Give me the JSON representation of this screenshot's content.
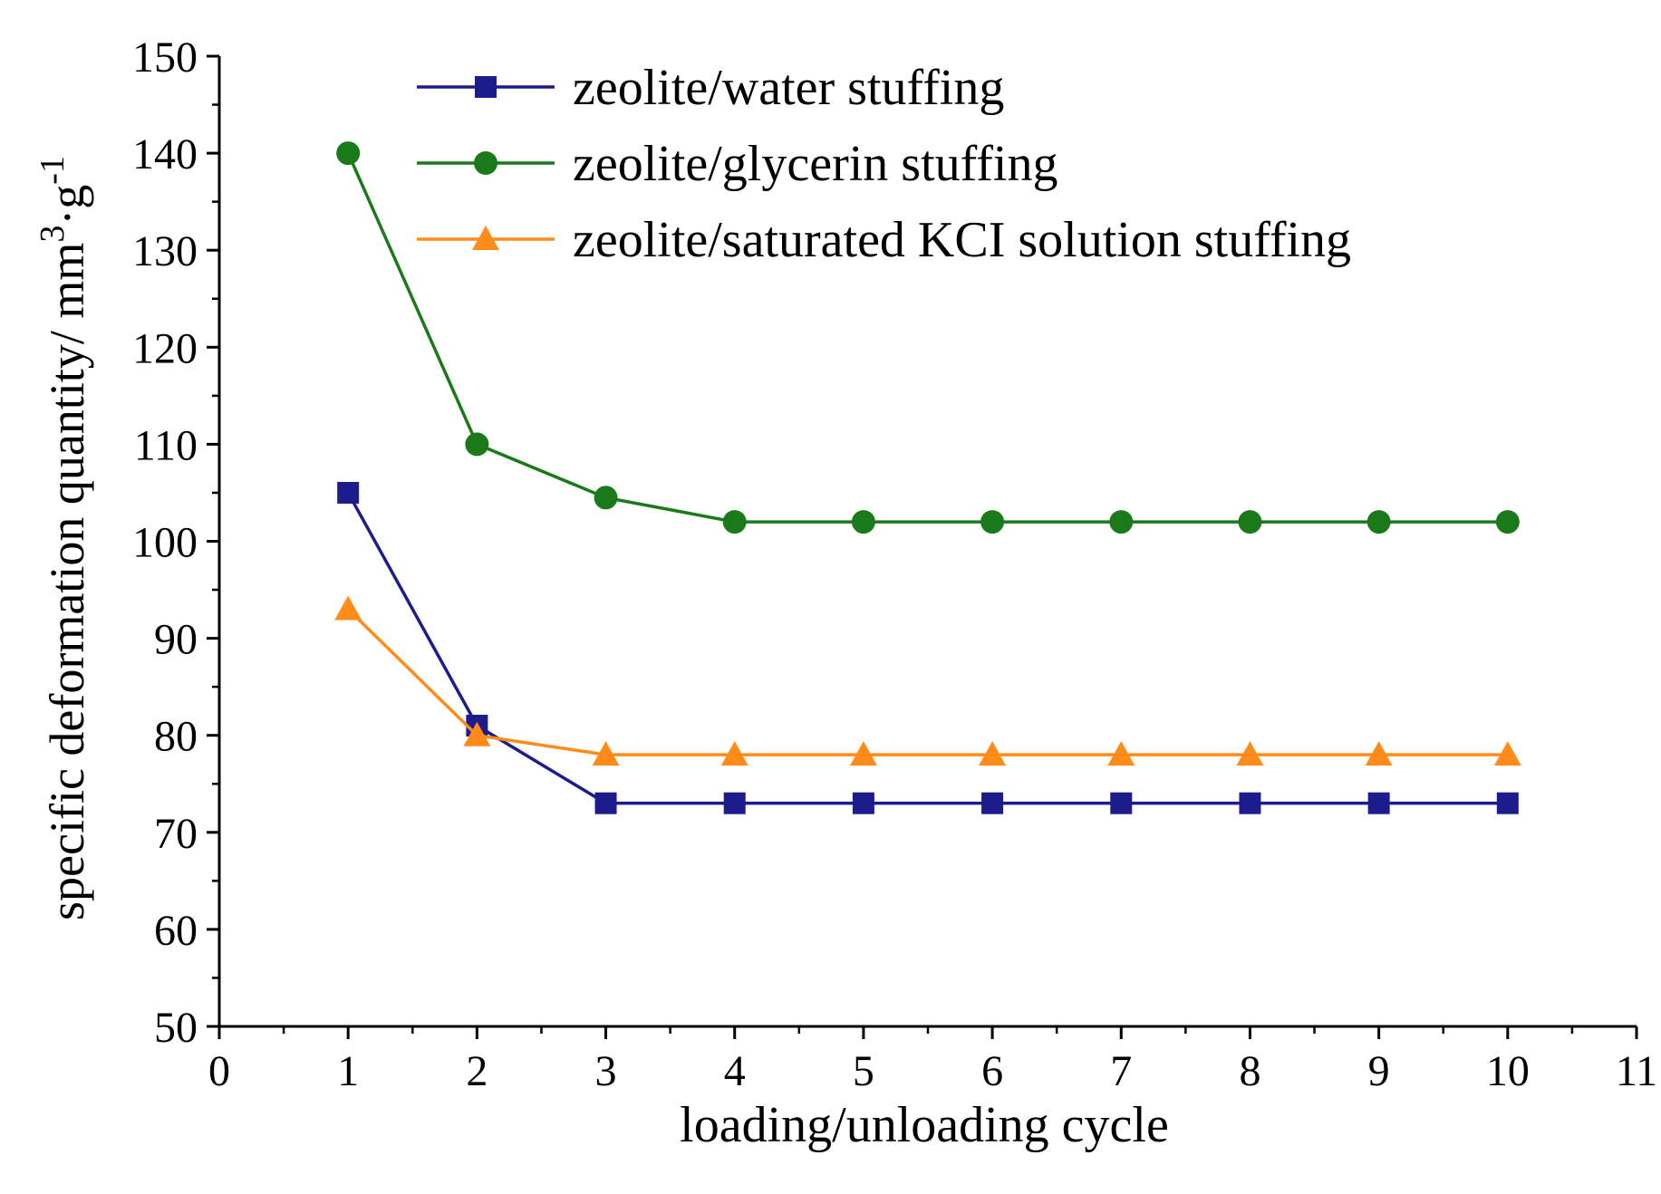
{
  "chart_data": {
    "type": "line",
    "title": "",
    "xlabel": "loading/unloading cycle",
    "ylabel": {
      "main": "specific deformation quantity/ mm",
      "sup1": "3",
      "mid": "·g",
      "sup2": "-1"
    },
    "xlim": [
      0,
      11
    ],
    "ylim": [
      50,
      150
    ],
    "x_ticks": [
      0,
      1,
      2,
      3,
      4,
      5,
      6,
      7,
      8,
      9,
      10,
      11
    ],
    "y_ticks": [
      50,
      60,
      70,
      80,
      90,
      100,
      110,
      120,
      130,
      140,
      150
    ],
    "legend_position": "top-center",
    "series": [
      {
        "name": "zeolite/water stuffing",
        "color": "#1c1c8c",
        "marker": "square",
        "x": [
          1,
          2,
          3,
          4,
          5,
          6,
          7,
          8,
          9,
          10
        ],
        "values": [
          105,
          81,
          73,
          73,
          73,
          73,
          73,
          73,
          73,
          73
        ]
      },
      {
        "name": "zeolite/glycerin stuffing",
        "color": "#1a7a1a",
        "marker": "circle",
        "x": [
          1,
          2,
          3,
          4,
          5,
          6,
          7,
          8,
          9,
          10
        ],
        "values": [
          140,
          110,
          104.5,
          102,
          102,
          102,
          102,
          102,
          102,
          102
        ]
      },
      {
        "name": "zeolite/saturated KCI solution stuffing",
        "color": "#ff8c1a",
        "marker": "triangle",
        "x": [
          1,
          2,
          3,
          4,
          5,
          6,
          7,
          8,
          9,
          10
        ],
        "values": [
          93,
          80,
          78,
          78,
          78,
          78,
          78,
          78,
          78,
          78
        ]
      }
    ]
  }
}
